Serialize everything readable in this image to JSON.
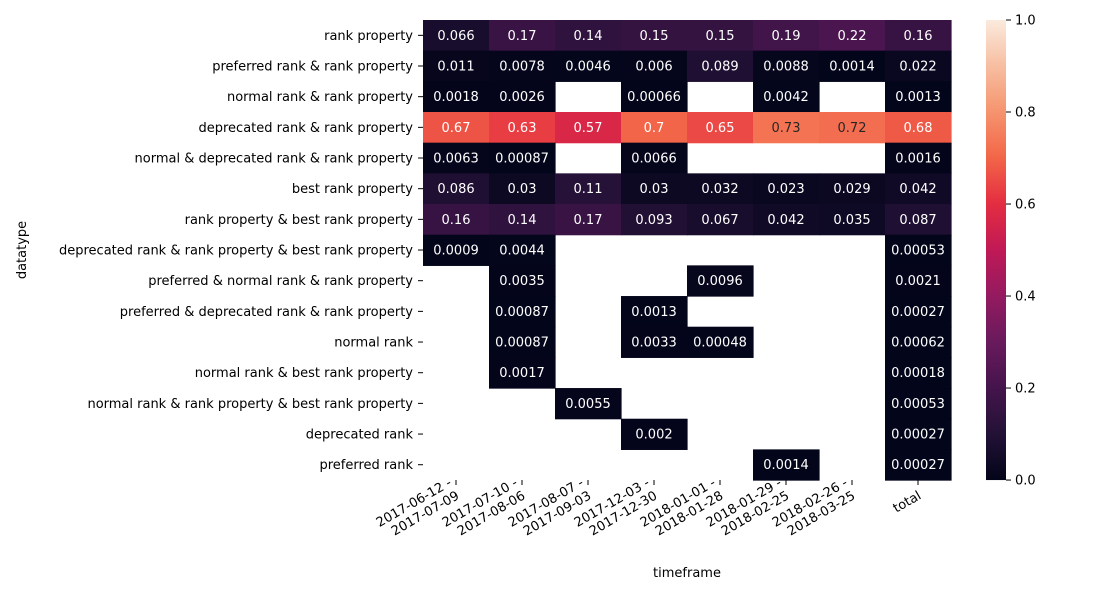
{
  "chart_data": {
    "type": "heatmap",
    "xlabel": "timeframe",
    "ylabel": "datatype",
    "x_categories": [
      [
        "2017-06-12 -",
        "2017-07-09"
      ],
      [
        "2017-07-10 -",
        "2017-08-06"
      ],
      [
        "2017-08-07 -",
        "2017-09-03"
      ],
      [
        "2017-12-03 -",
        "2017-12-30"
      ],
      [
        "2018-01-01 -",
        "2018-01-28"
      ],
      [
        "2018-01-29 -",
        "2018-02-25"
      ],
      [
        "2018-02-26 -",
        "2018-03-25"
      ],
      [
        "total"
      ]
    ],
    "y_categories": [
      "rank property",
      "preferred rank & rank property",
      "normal rank & rank property",
      "deprecated rank & rank property",
      "normal & deprecated rank & rank property",
      "best rank property",
      "rank property & best rank property",
      "deprecated rank & rank property & best rank property",
      "preferred & normal rank & rank property",
      "preferred & deprecated rank & rank property",
      "normal rank",
      "normal rank & best rank property",
      "normal rank & rank property & best rank property",
      "deprecated rank",
      "preferred rank"
    ],
    "values": [
      [
        "0.066",
        "0.17",
        "0.14",
        "0.15",
        "0.15",
        "0.19",
        "0.22",
        "0.16"
      ],
      [
        "0.011",
        "0.0078",
        "0.0046",
        "0.006",
        "0.089",
        "0.0088",
        "0.0014",
        "0.022"
      ],
      [
        "0.0018",
        "0.0026",
        null,
        "0.00066",
        null,
        "0.0042",
        null,
        "0.0013"
      ],
      [
        "0.67",
        "0.63",
        "0.57",
        "0.7",
        "0.65",
        "0.73",
        "0.72",
        "0.68"
      ],
      [
        "0.0063",
        "0.00087",
        null,
        "0.0066",
        null,
        null,
        null,
        "0.0016"
      ],
      [
        "0.086",
        "0.03",
        "0.11",
        "0.03",
        "0.032",
        "0.023",
        "0.029",
        "0.042"
      ],
      [
        "0.16",
        "0.14",
        "0.17",
        "0.093",
        "0.067",
        "0.042",
        "0.035",
        "0.087"
      ],
      [
        "0.0009",
        "0.0044",
        null,
        null,
        null,
        null,
        null,
        "0.00053"
      ],
      [
        null,
        "0.0035",
        null,
        null,
        "0.0096",
        null,
        null,
        "0.0021"
      ],
      [
        null,
        "0.00087",
        null,
        "0.0013",
        null,
        null,
        null,
        "0.00027"
      ],
      [
        null,
        "0.00087",
        null,
        "0.0033",
        "0.00048",
        null,
        null,
        "0.00062"
      ],
      [
        null,
        "0.0017",
        null,
        null,
        null,
        null,
        null,
        "0.00018"
      ],
      [
        null,
        null,
        "0.0055",
        null,
        null,
        null,
        null,
        "0.00053"
      ],
      [
        null,
        null,
        null,
        "0.002",
        null,
        null,
        null,
        "0.00027"
      ],
      [
        null,
        null,
        null,
        null,
        null,
        "0.0014",
        null,
        "0.00027"
      ]
    ],
    "colorbar": {
      "min": 0.0,
      "max": 1.0,
      "ticks": [
        "0.0",
        "0.2",
        "0.4",
        "0.6",
        "0.8",
        "1.0"
      ],
      "colormap": "rocket"
    }
  }
}
